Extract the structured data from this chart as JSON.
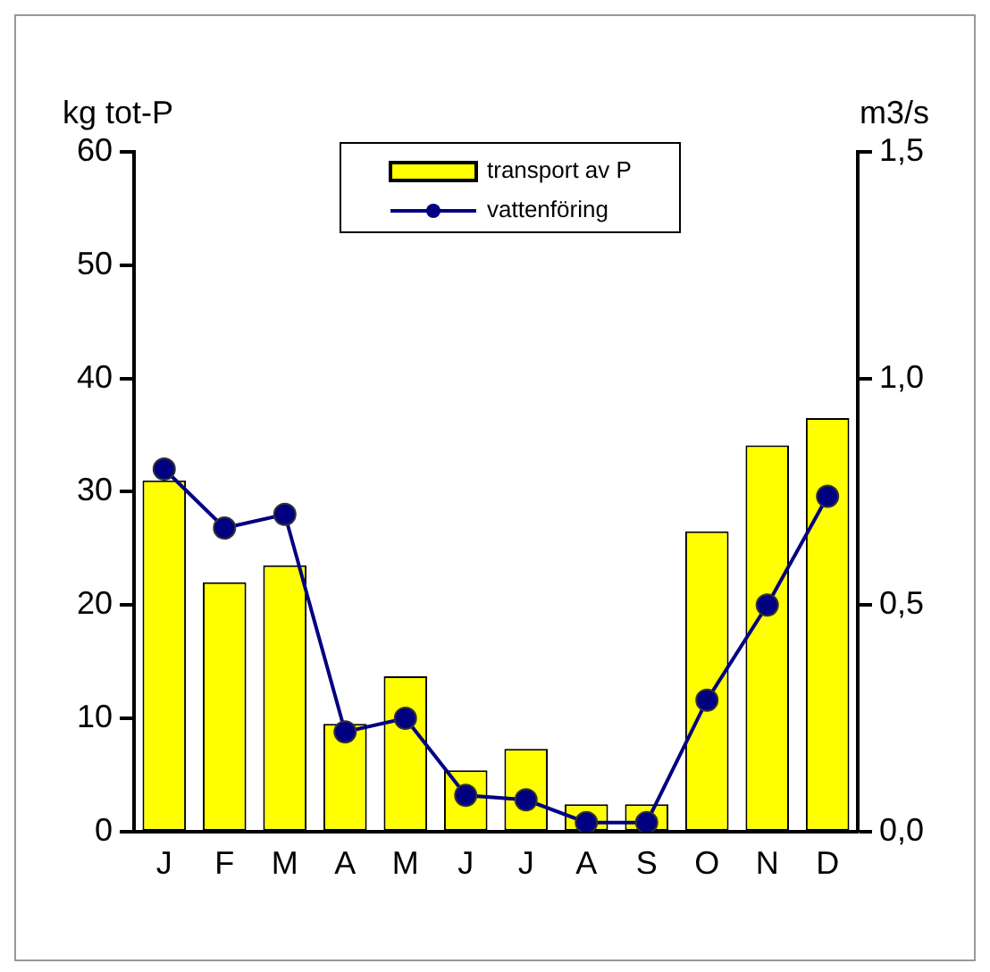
{
  "chart_data": {
    "type": "bar",
    "ylabel": "kg tot-P",
    "y2label": "m3/s",
    "categories": [
      "J",
      "F",
      "M",
      "A",
      "M",
      "J",
      "J",
      "A",
      "S",
      "O",
      "N",
      "D"
    ],
    "series": [
      {
        "name": "transport av P",
        "color": "#ffff00",
        "values": [
          31.0,
          22.0,
          23.5,
          9.5,
          13.7,
          5.4,
          7.3,
          2.4,
          2.4,
          26.5,
          34.1,
          36.5
        ]
      },
      {
        "name": "vattenföring",
        "type": "line",
        "axis": "y2",
        "color": "#000080",
        "marker": "circle",
        "values": [
          0.8,
          0.67,
          0.7,
          0.22,
          0.25,
          0.08,
          0.07,
          0.02,
          0.02,
          0.29,
          0.5,
          0.74
        ]
      }
    ],
    "ylim": [
      0,
      60
    ],
    "yticks": [
      0,
      10,
      20,
      30,
      40,
      50,
      60
    ],
    "y2lim": [
      0,
      1.5
    ],
    "y2ticks": [
      {
        "value": 0,
        "label": "0,0"
      },
      {
        "value": 0.5,
        "label": "0,5"
      },
      {
        "value": 1.0,
        "label": "1,0"
      },
      {
        "value": 1.5,
        "label": "1,5"
      }
    ],
    "grid": false,
    "legend": "top"
  }
}
